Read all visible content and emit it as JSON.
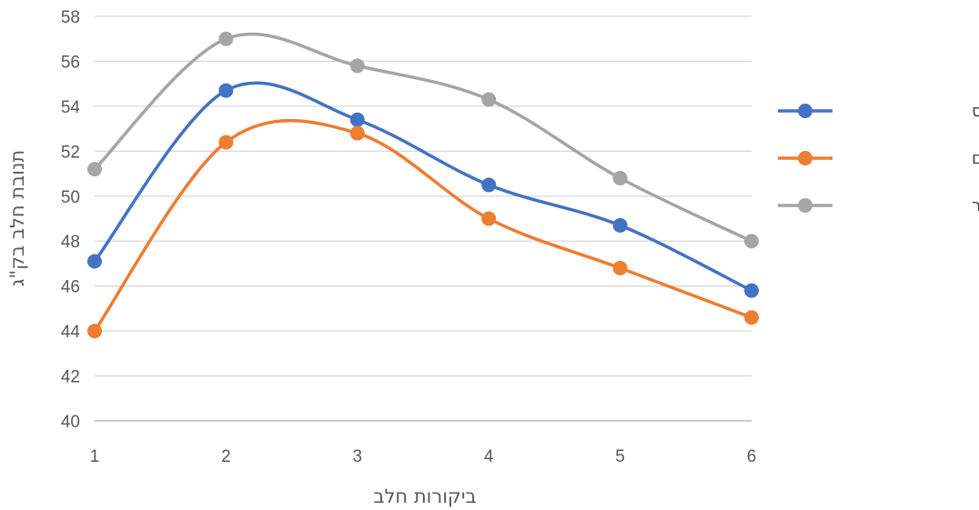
{
  "chart_data": {
    "type": "line",
    "title": "",
    "xlabel": "ביקורות חלב",
    "ylabel": "תנובת חלב בק\"ג",
    "x": [
      1,
      2,
      3,
      4,
      5,
      6
    ],
    "ylim": [
      40,
      58
    ],
    "yticks": [
      40,
      42,
      44,
      46,
      48,
      50,
      52,
      54,
      56,
      58
    ],
    "grid": true,
    "smooth": true,
    "legend_position": "right",
    "series": [
      {
        "name": "ללא קטוזיס",
        "color": "#4472C4",
        "values": [
          47.1,
          54.7,
          53.4,
          50.5,
          48.7,
          45.8
        ]
      },
      {
        "name": "קטוזיס מוקדם",
        "color": "#ED7D31",
        "values": [
          44.0,
          52.4,
          52.8,
          49.0,
          46.8,
          44.6
        ]
      },
      {
        "name": "קטוזיס מאוחר",
        "color": "#A5A5A5",
        "values": [
          51.2,
          57.0,
          55.8,
          54.3,
          50.8,
          48.0
        ]
      }
    ]
  }
}
